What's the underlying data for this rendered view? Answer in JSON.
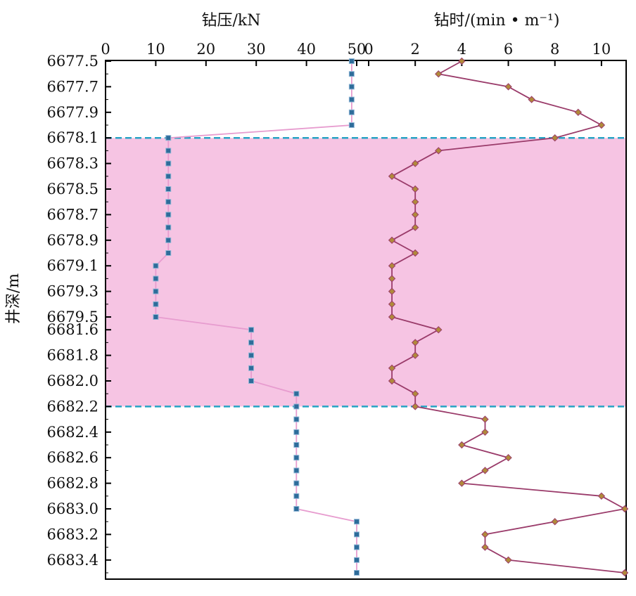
{
  "colors": {
    "band_fill": "#f6c4e3",
    "band_border": "#27a3c4",
    "pressure_line": "#e79ccf",
    "pressure_marker": "#2e6c9a",
    "time_line": "#9a3b6a",
    "time_marker": "#b08a3a",
    "highlight_tick": "#e8201a",
    "axis": "#000000"
  },
  "chart_data": {
    "type": "line",
    "orientation": "vertical-depth",
    "ylabel": "井深/m",
    "y_axis": {
      "ticks": [
        "6677.5",
        "6677.7",
        "6677.9",
        "6678.1",
        "6678.3",
        "6678.5",
        "6678.7",
        "6678.9",
        "6679.1",
        "6679.3",
        "6679.5",
        "6681.6",
        "6681.8",
        "6682.0",
        "6682.2",
        "6682.4",
        "6682.6",
        "6682.8",
        "6683.0",
        "6683.2",
        "6683.4"
      ],
      "highlighted_ticks": [
        "6679.5",
        "6681.6"
      ],
      "inverted": true
    },
    "highlight_band": {
      "from_depth": "6678.1",
      "to_depth": "6682.2"
    },
    "panels": [
      {
        "name": "pressure",
        "title": "钻压/kN",
        "xlim": [
          0,
          50
        ],
        "xticks": [
          "0",
          "10",
          "20",
          "30",
          "40",
          "50"
        ],
        "depths": [
          6677.5,
          6677.6,
          6677.7,
          6677.8,
          6677.9,
          6678.0,
          6678.1,
          6678.2,
          6678.3,
          6678.4,
          6678.5,
          6678.6,
          6678.7,
          6678.8,
          6678.9,
          6679.0,
          6679.1,
          6679.2,
          6679.3,
          6679.4,
          6679.5,
          6681.6,
          6681.7,
          6681.8,
          6681.9,
          6682.0,
          6682.1,
          6682.2,
          6682.3,
          6682.4,
          6682.5,
          6682.6,
          6682.7,
          6682.8,
          6682.9,
          6683.0,
          6683.1,
          6683.2,
          6683.3,
          6683.4,
          6683.5
        ],
        "values": [
          49,
          49,
          49,
          49,
          49,
          49,
          12.5,
          12.5,
          12.5,
          12.5,
          12.5,
          12.5,
          12.5,
          12.5,
          12.5,
          12.5,
          10,
          10,
          10,
          10,
          10,
          29,
          29,
          29,
          29,
          29,
          38,
          38,
          38,
          38,
          38,
          38,
          38,
          38,
          38,
          38,
          50,
          50,
          50,
          50,
          50
        ]
      },
      {
        "name": "drilling-time",
        "title": "钻时/(min • m⁻¹)",
        "xlim": [
          0,
          11
        ],
        "xticks": [
          "0",
          "2",
          "4",
          "6",
          "8",
          "10"
        ],
        "depths": [
          6677.5,
          6677.6,
          6677.7,
          6677.8,
          6677.9,
          6678.0,
          6678.1,
          6678.2,
          6678.3,
          6678.4,
          6678.5,
          6678.6,
          6678.7,
          6678.8,
          6678.9,
          6679.0,
          6679.1,
          6679.2,
          6679.3,
          6679.4,
          6679.5,
          6681.6,
          6681.7,
          6681.8,
          6681.9,
          6682.0,
          6682.1,
          6682.2,
          6682.3,
          6682.4,
          6682.5,
          6682.6,
          6682.7,
          6682.8,
          6682.9,
          6683.0,
          6683.1,
          6683.2,
          6683.3,
          6683.4,
          6683.5
        ],
        "values": [
          4,
          3,
          6,
          7,
          9,
          10,
          8,
          3,
          2,
          1,
          2,
          2,
          2,
          2,
          1,
          2,
          1,
          1,
          1,
          1,
          1,
          3,
          2,
          2,
          1,
          1,
          2,
          2,
          5,
          5,
          4,
          6,
          5,
          4,
          10,
          11,
          8,
          5,
          5,
          6,
          11
        ]
      }
    ]
  }
}
